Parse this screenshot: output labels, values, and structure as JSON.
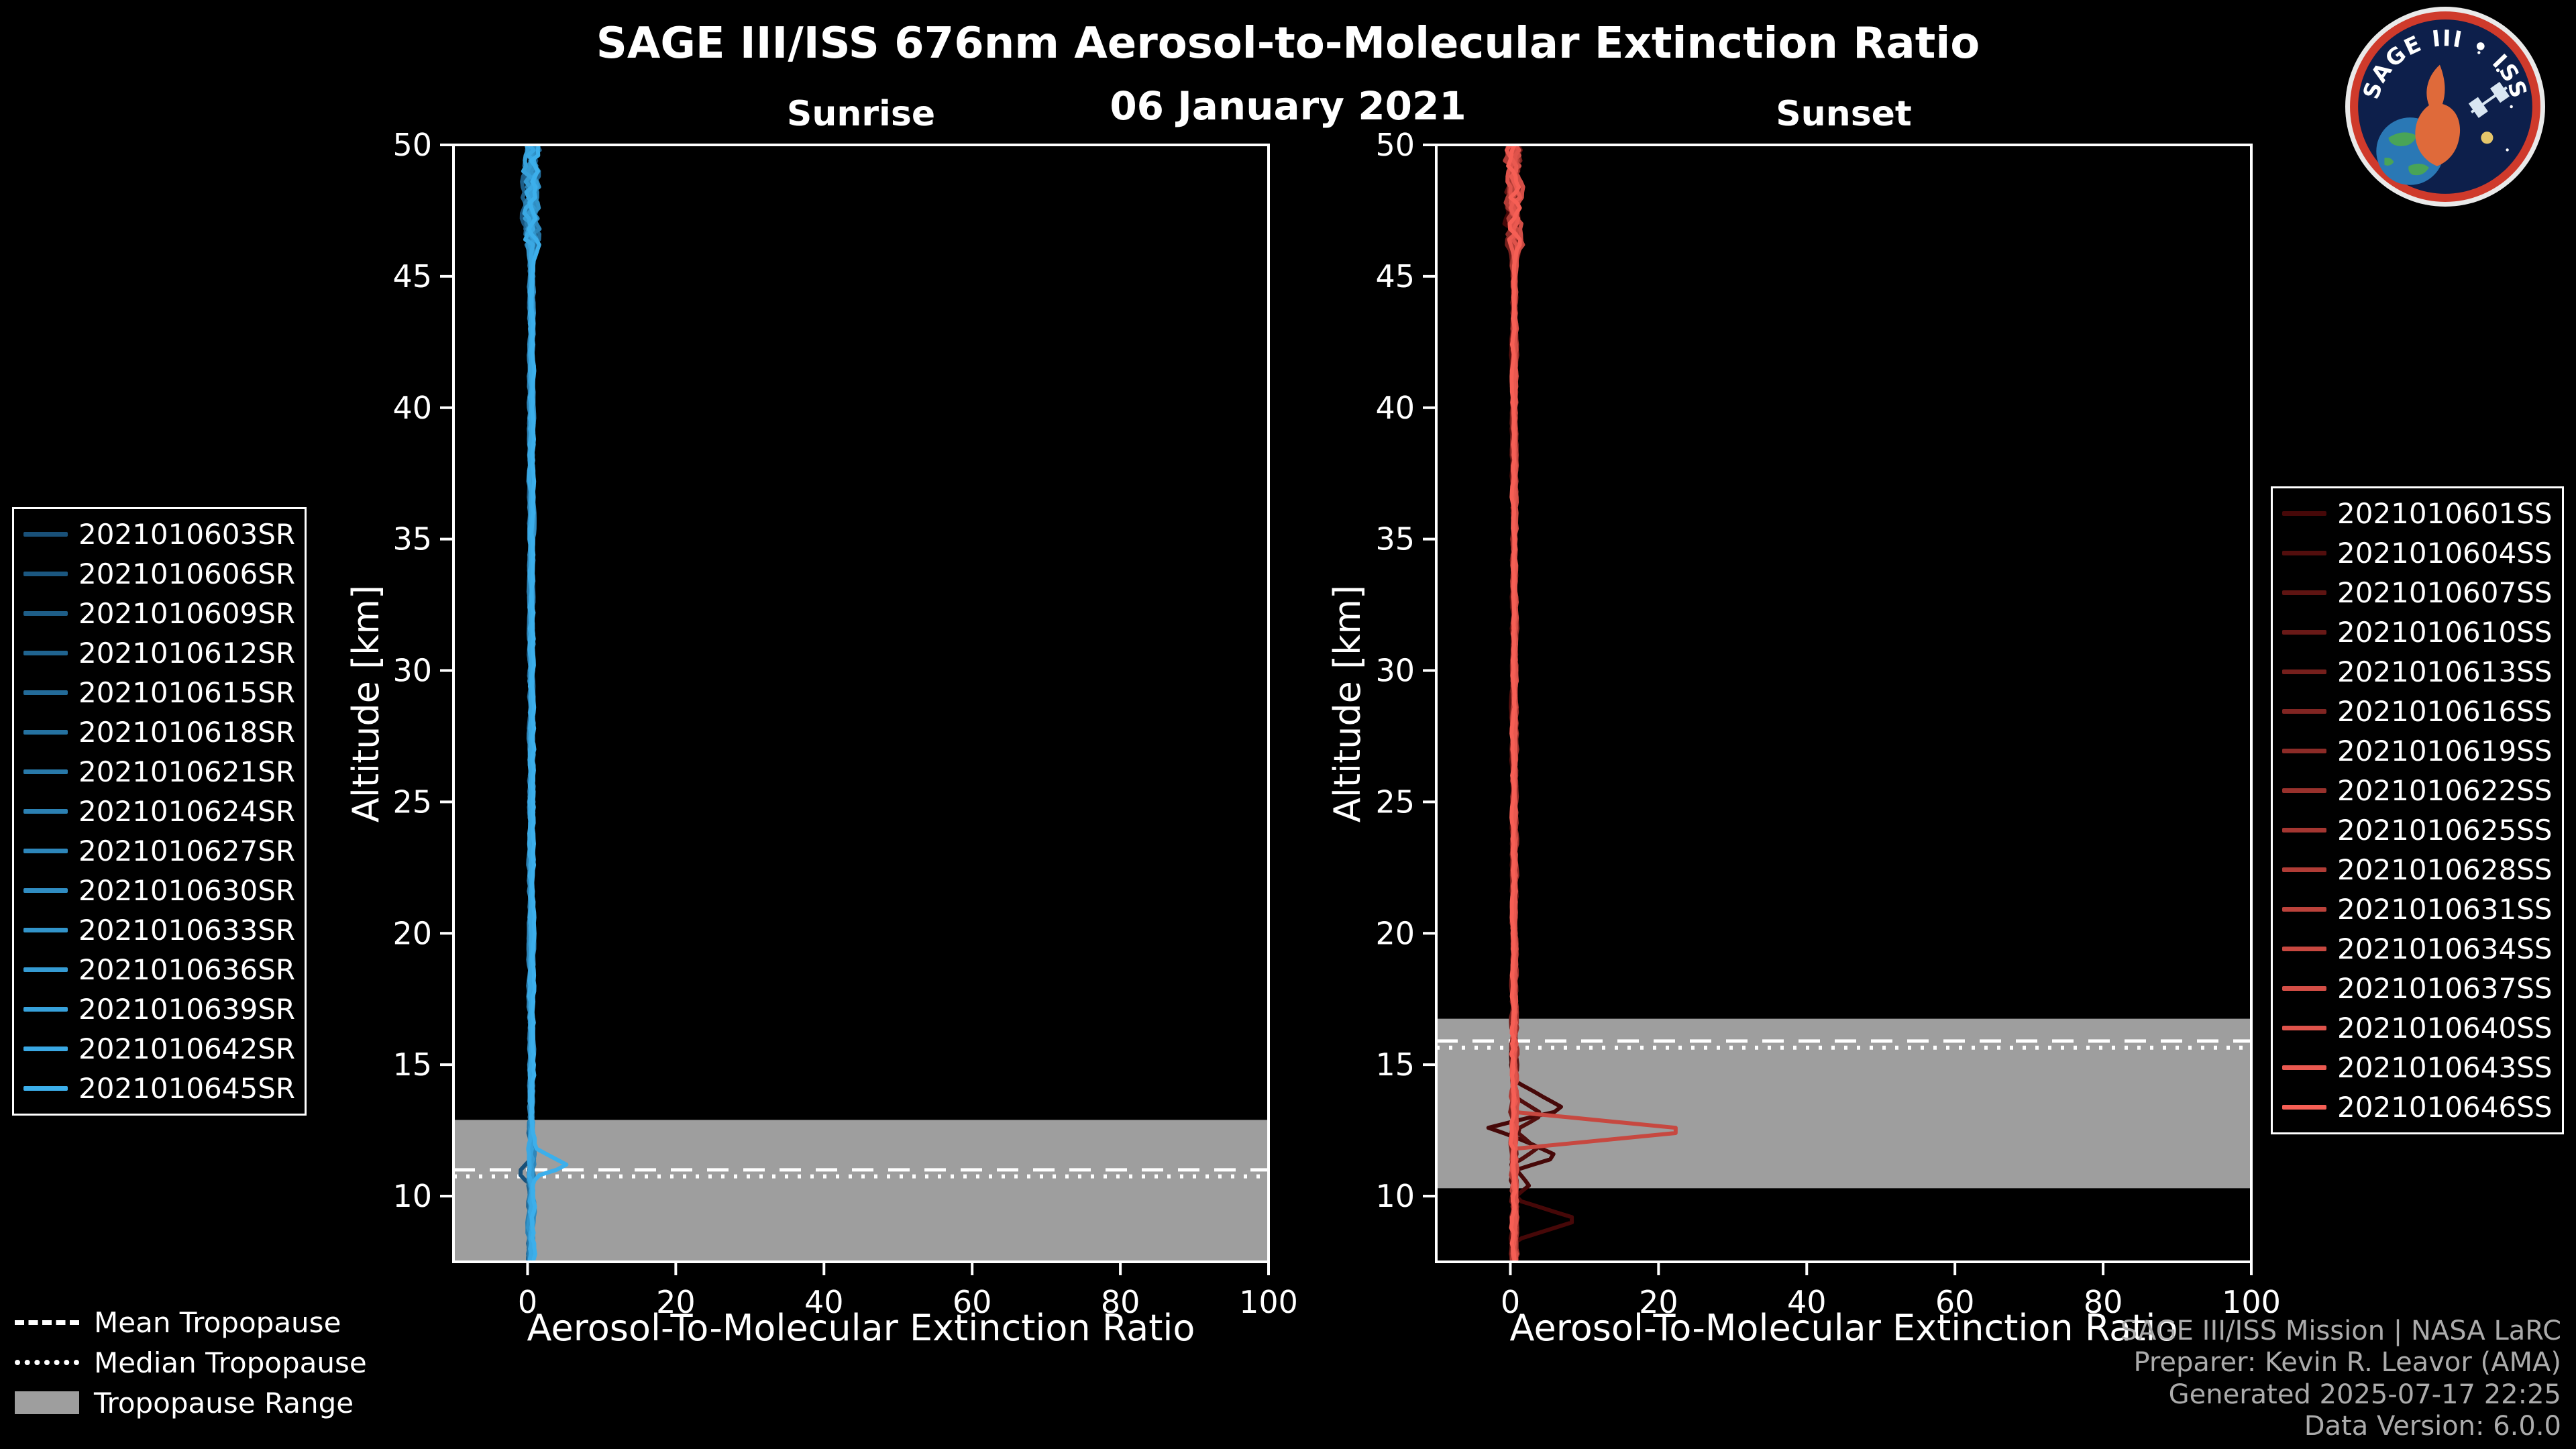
{
  "header": {
    "title": "SAGE III/ISS 676nm Aerosol-to-Molecular Extinction Ratio",
    "date": "06 January 2021"
  },
  "logo": {
    "text": "SAGE III • ISS"
  },
  "tropopause_legend": {
    "mean": "Mean Tropopause",
    "median": "Median Tropopause",
    "range": "Tropopause Range"
  },
  "footer": {
    "lines": [
      "SAGE III/ISS Mission | NASA LaRC",
      "Preparer: Kevin R. Leavor (AMA)",
      "Generated 2025-07-17 22:25",
      "Data Version: 6.0.0"
    ]
  },
  "chart_data": [
    {
      "id": "sunrise",
      "type": "line",
      "title": "Sunrise",
      "xlabel": "Aerosol-To-Molecular Extinction Ratio",
      "ylabel": "Altitude [km]",
      "xlim": [
        -10,
        100
      ],
      "ylim": [
        7.5,
        50
      ],
      "xticks": [
        0,
        20,
        40,
        60,
        80,
        100
      ],
      "yticks": [
        10,
        15,
        20,
        25,
        30,
        35,
        40,
        45,
        50
      ],
      "grid": false,
      "legend_position": "outside-left",
      "tropopause": {
        "mean_km": 11.0,
        "median_km": 10.75,
        "range_km": [
          7.5,
          12.9
        ]
      },
      "profile_model": {
        "base_ratio": 0.5,
        "series_offset_spread": 0.5,
        "noise": [
          {
            "alt_min": 46,
            "alt_max": 50.5,
            "amp": 3.0
          },
          {
            "alt_min": 13,
            "alt_max": 46,
            "amp": 0.55
          },
          {
            "alt_min": 7.0,
            "alt_max": 13,
            "amp": 0.9
          }
        ]
      },
      "anomalies": [
        {
          "series": "2021010645SR",
          "points": [
            [
              0.5,
              11.9
            ],
            [
              5.5,
              11.15
            ],
            [
              0.4,
              10.7
            ]
          ]
        },
        {
          "series": "2021010603SR",
          "points": [
            [
              0.4,
              11.4
            ],
            [
              -1.3,
              10.9
            ],
            [
              0.3,
              10.4
            ]
          ]
        }
      ],
      "series": [
        {
          "name": "2021010603SR",
          "color": "#195078"
        },
        {
          "name": "2021010606SR",
          "color": "#1b5780"
        },
        {
          "name": "2021010609SR",
          "color": "#1e5e88"
        },
        {
          "name": "2021010612SR",
          "color": "#206490"
        },
        {
          "name": "2021010615SR",
          "color": "#236b99"
        },
        {
          "name": "2021010618SR",
          "color": "#2572a1"
        },
        {
          "name": "2021010621SR",
          "color": "#2879a9"
        },
        {
          "name": "2021010624SR",
          "color": "#2b80b2"
        },
        {
          "name": "2021010627SR",
          "color": "#2d86ba"
        },
        {
          "name": "2021010630SR",
          "color": "#308dc2"
        },
        {
          "name": "2021010633SR",
          "color": "#3294ca"
        },
        {
          "name": "2021010636SR",
          "color": "#359bd3"
        },
        {
          "name": "2021010639SR",
          "color": "#37a1db"
        },
        {
          "name": "2021010642SR",
          "color": "#3aa8e3"
        },
        {
          "name": "2021010645SR",
          "color": "#3cafeb"
        }
      ]
    },
    {
      "id": "sunset",
      "type": "line",
      "title": "Sunset",
      "xlabel": "Aerosol-To-Molecular Extinction Ratio",
      "ylabel": "Altitude [km]",
      "xlim": [
        -10,
        100
      ],
      "ylim": [
        7.5,
        50
      ],
      "xticks": [
        0,
        20,
        40,
        60,
        80,
        100
      ],
      "yticks": [
        10,
        15,
        20,
        25,
        30,
        35,
        40,
        45,
        50
      ],
      "grid": false,
      "legend_position": "outside-right",
      "tropopause": {
        "mean_km": 15.9,
        "median_km": 15.65,
        "range_km": [
          10.3,
          16.75
        ]
      },
      "profile_model": {
        "base_ratio": 0.5,
        "series_offset_spread": 0.5,
        "noise": [
          {
            "alt_min": 46,
            "alt_max": 50.5,
            "amp": 3.0
          },
          {
            "alt_min": 17,
            "alt_max": 46,
            "amp": 0.55
          },
          {
            "alt_min": 7.0,
            "alt_max": 17,
            "amp": 1.0
          }
        ]
      },
      "anomalies": [
        {
          "series": "2021010601SS",
          "points": [
            [
              0.5,
              14.4
            ],
            [
              7.5,
              13.3
            ],
            [
              1.2,
              12.9
            ],
            [
              -3.0,
              12.6
            ],
            [
              2.0,
              12.1
            ],
            [
              6.5,
              11.5
            ],
            [
              0.8,
              11.0
            ],
            [
              2.5,
              10.4
            ],
            [
              0.3,
              9.9
            ],
            [
              9.5,
              9.1
            ],
            [
              0.5,
              8.3
            ]
          ]
        },
        {
          "series": "2021010604SS",
          "points": [
            [
              0.5,
              13.8
            ],
            [
              4.5,
              13.1
            ],
            [
              0.6,
              12.5
            ],
            [
              3.5,
              11.8
            ],
            [
              0.4,
              11.2
            ]
          ]
        },
        {
          "series": "2021010634SS",
          "points": [
            [
              0.6,
              13.2
            ],
            [
              26.0,
              12.5
            ],
            [
              0.7,
              11.8
            ]
          ]
        }
      ],
      "series": [
        {
          "name": "2021010601SS",
          "color": "#460808"
        },
        {
          "name": "2021010604SS",
          "color": "#520e0d"
        },
        {
          "name": "2021010607SS",
          "color": "#5e1412"
        },
        {
          "name": "2021010610SS",
          "color": "#691917"
        },
        {
          "name": "2021010613SS",
          "color": "#751f1c"
        },
        {
          "name": "2021010616SS",
          "color": "#812522"
        },
        {
          "name": "2021010619SS",
          "color": "#8c2b27"
        },
        {
          "name": "2021010622SS",
          "color": "#98312c"
        },
        {
          "name": "2021010625SS",
          "color": "#a43631"
        },
        {
          "name": "2021010628SS",
          "color": "#b03c36"
        },
        {
          "name": "2021010631SS",
          "color": "#bb423b"
        },
        {
          "name": "2021010634SS",
          "color": "#c74840"
        },
        {
          "name": "2021010637SS",
          "color": "#d34e46"
        },
        {
          "name": "2021010640SS",
          "color": "#df534b"
        },
        {
          "name": "2021010643SS",
          "color": "#ea5950"
        },
        {
          "name": "2021010646SS",
          "color": "#f65f55"
        }
      ]
    }
  ]
}
